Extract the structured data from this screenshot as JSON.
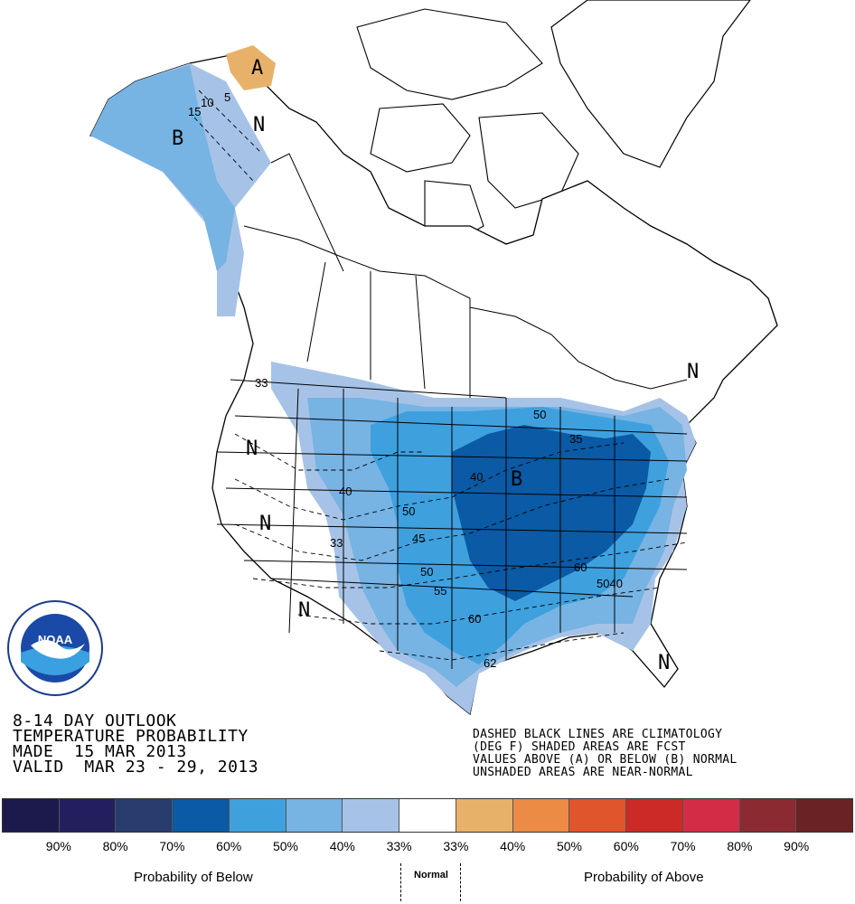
{
  "outlook": {
    "line1": "8-14 DAY OUTLOOK",
    "line2": "TEMPERATURE PROBABILITY",
    "line3": "MADE  15 MAR 2013",
    "line4": "VALID  MAR 23 - 29, 2013"
  },
  "notes": {
    "line1": "DASHED BLACK LINES ARE CLIMATOLOGY",
    "line2": "(DEG F) SHADED AREAS ARE FCST",
    "line3": "VALUES ABOVE (A) OR BELOW (B) NORMAL",
    "line4": "UNSHADED AREAS ARE NEAR-NORMAL"
  },
  "map_labels": {
    "below": "B",
    "above": "A",
    "normal": "N"
  },
  "isotherms": [
    "5",
    "10",
    "15",
    "33",
    "35",
    "40",
    "45",
    "50",
    "55",
    "60",
    "62",
    "5040"
  ],
  "legend": {
    "ticks": [
      "90%",
      "80%",
      "70%",
      "60%",
      "50%",
      "40%",
      "33%",
      "33%",
      "40%",
      "50%",
      "60%",
      "70%",
      "80%",
      "90%"
    ],
    "colors": [
      "#1c1a4c",
      "#231f5e",
      "#283c6e",
      "#0a5aa5",
      "#3fa0de",
      "#77b3e3",
      "#a6c3e7",
      "#ffffff",
      "#e8b169",
      "#ec8b45",
      "#e0552c",
      "#cc2a26",
      "#d22c46",
      "#8c2a32",
      "#6b2224"
    ],
    "below_caption": "Probability of Below",
    "normal_caption": "Normal",
    "above_caption": "Probability of Above"
  },
  "logo": {
    "text": "NOAA"
  }
}
